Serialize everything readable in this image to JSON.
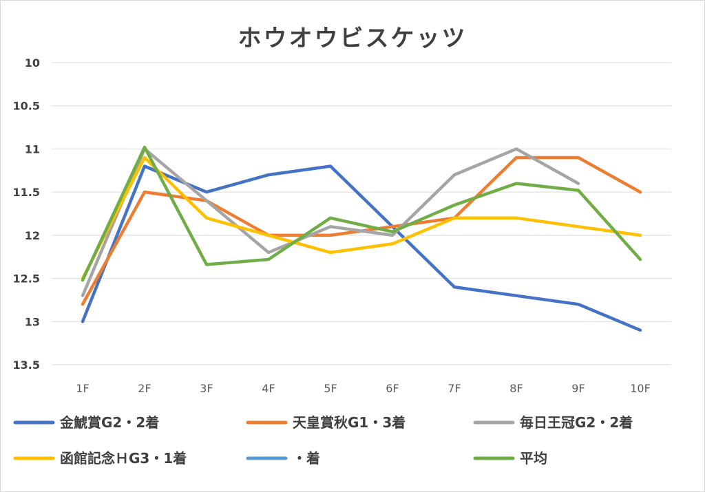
{
  "chart_data": {
    "type": "line",
    "title": "ホウオウビスケッツ",
    "categories": [
      "1F",
      "2F",
      "3F",
      "4F",
      "5F",
      "6F",
      "7F",
      "8F",
      "9F",
      "10F"
    ],
    "ylim": [
      10,
      13.5
    ],
    "y_inverted": true,
    "y_ticks": [
      "10",
      "10.5",
      "11",
      "11.5",
      "12",
      "12.5",
      "13",
      "13.5"
    ],
    "grid": true,
    "legend_position": "bottom",
    "series": [
      {
        "name": "金鯱賞G2・2着",
        "color": "#4472c4",
        "values": [
          13.0,
          11.2,
          11.5,
          11.3,
          11.2,
          11.9,
          12.6,
          12.7,
          12.8,
          13.1
        ]
      },
      {
        "name": "天皇賞秋G1・3着",
        "color": "#ed7d31",
        "values": [
          12.8,
          11.5,
          11.6,
          12.0,
          12.0,
          11.9,
          11.8,
          11.1,
          11.1,
          11.5
        ]
      },
      {
        "name": "毎日王冠G2・2着",
        "color": "#a5a5a5",
        "values": [
          12.7,
          11.0,
          11.6,
          12.2,
          11.9,
          12.0,
          11.3,
          11.0,
          11.4,
          null
        ]
      },
      {
        "name": "函館記念ＨG3・1着",
        "color": "#ffc000",
        "values": [
          12.5,
          11.1,
          11.8,
          12.0,
          12.2,
          12.1,
          11.8,
          11.8,
          11.9,
          12.0
        ]
      },
      {
        "name": "・着",
        "color": "#5b9bd5",
        "values": [
          null,
          null,
          null,
          null,
          null,
          null,
          null,
          null,
          null,
          null
        ]
      },
      {
        "name": "平均",
        "color": "#70ad47",
        "values": [
          12.52,
          10.98,
          12.34,
          12.28,
          11.8,
          11.96,
          11.65,
          11.4,
          11.48,
          12.28
        ]
      }
    ]
  }
}
